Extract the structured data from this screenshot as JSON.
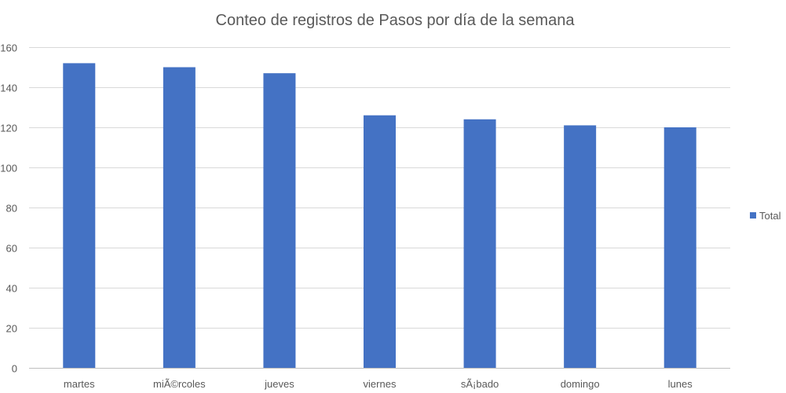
{
  "chart_data": {
    "type": "bar",
    "title": "Conteo de registros de Pasos por día de la semana",
    "xlabel": "",
    "ylabel": "",
    "categories": [
      "martes",
      "miÃ©rcoles",
      "jueves",
      "viernes",
      "sÃ¡bado",
      "domingo",
      "lunes"
    ],
    "series": [
      {
        "name": "Total",
        "values": [
          152,
          150,
          147,
          126,
          124,
          121,
          120
        ],
        "color": "#4472C4"
      }
    ],
    "ylim": [
      0,
      160
    ],
    "yticks": [
      0,
      20,
      40,
      60,
      80,
      100,
      120,
      140,
      160
    ],
    "grid": true,
    "legend": "right"
  }
}
